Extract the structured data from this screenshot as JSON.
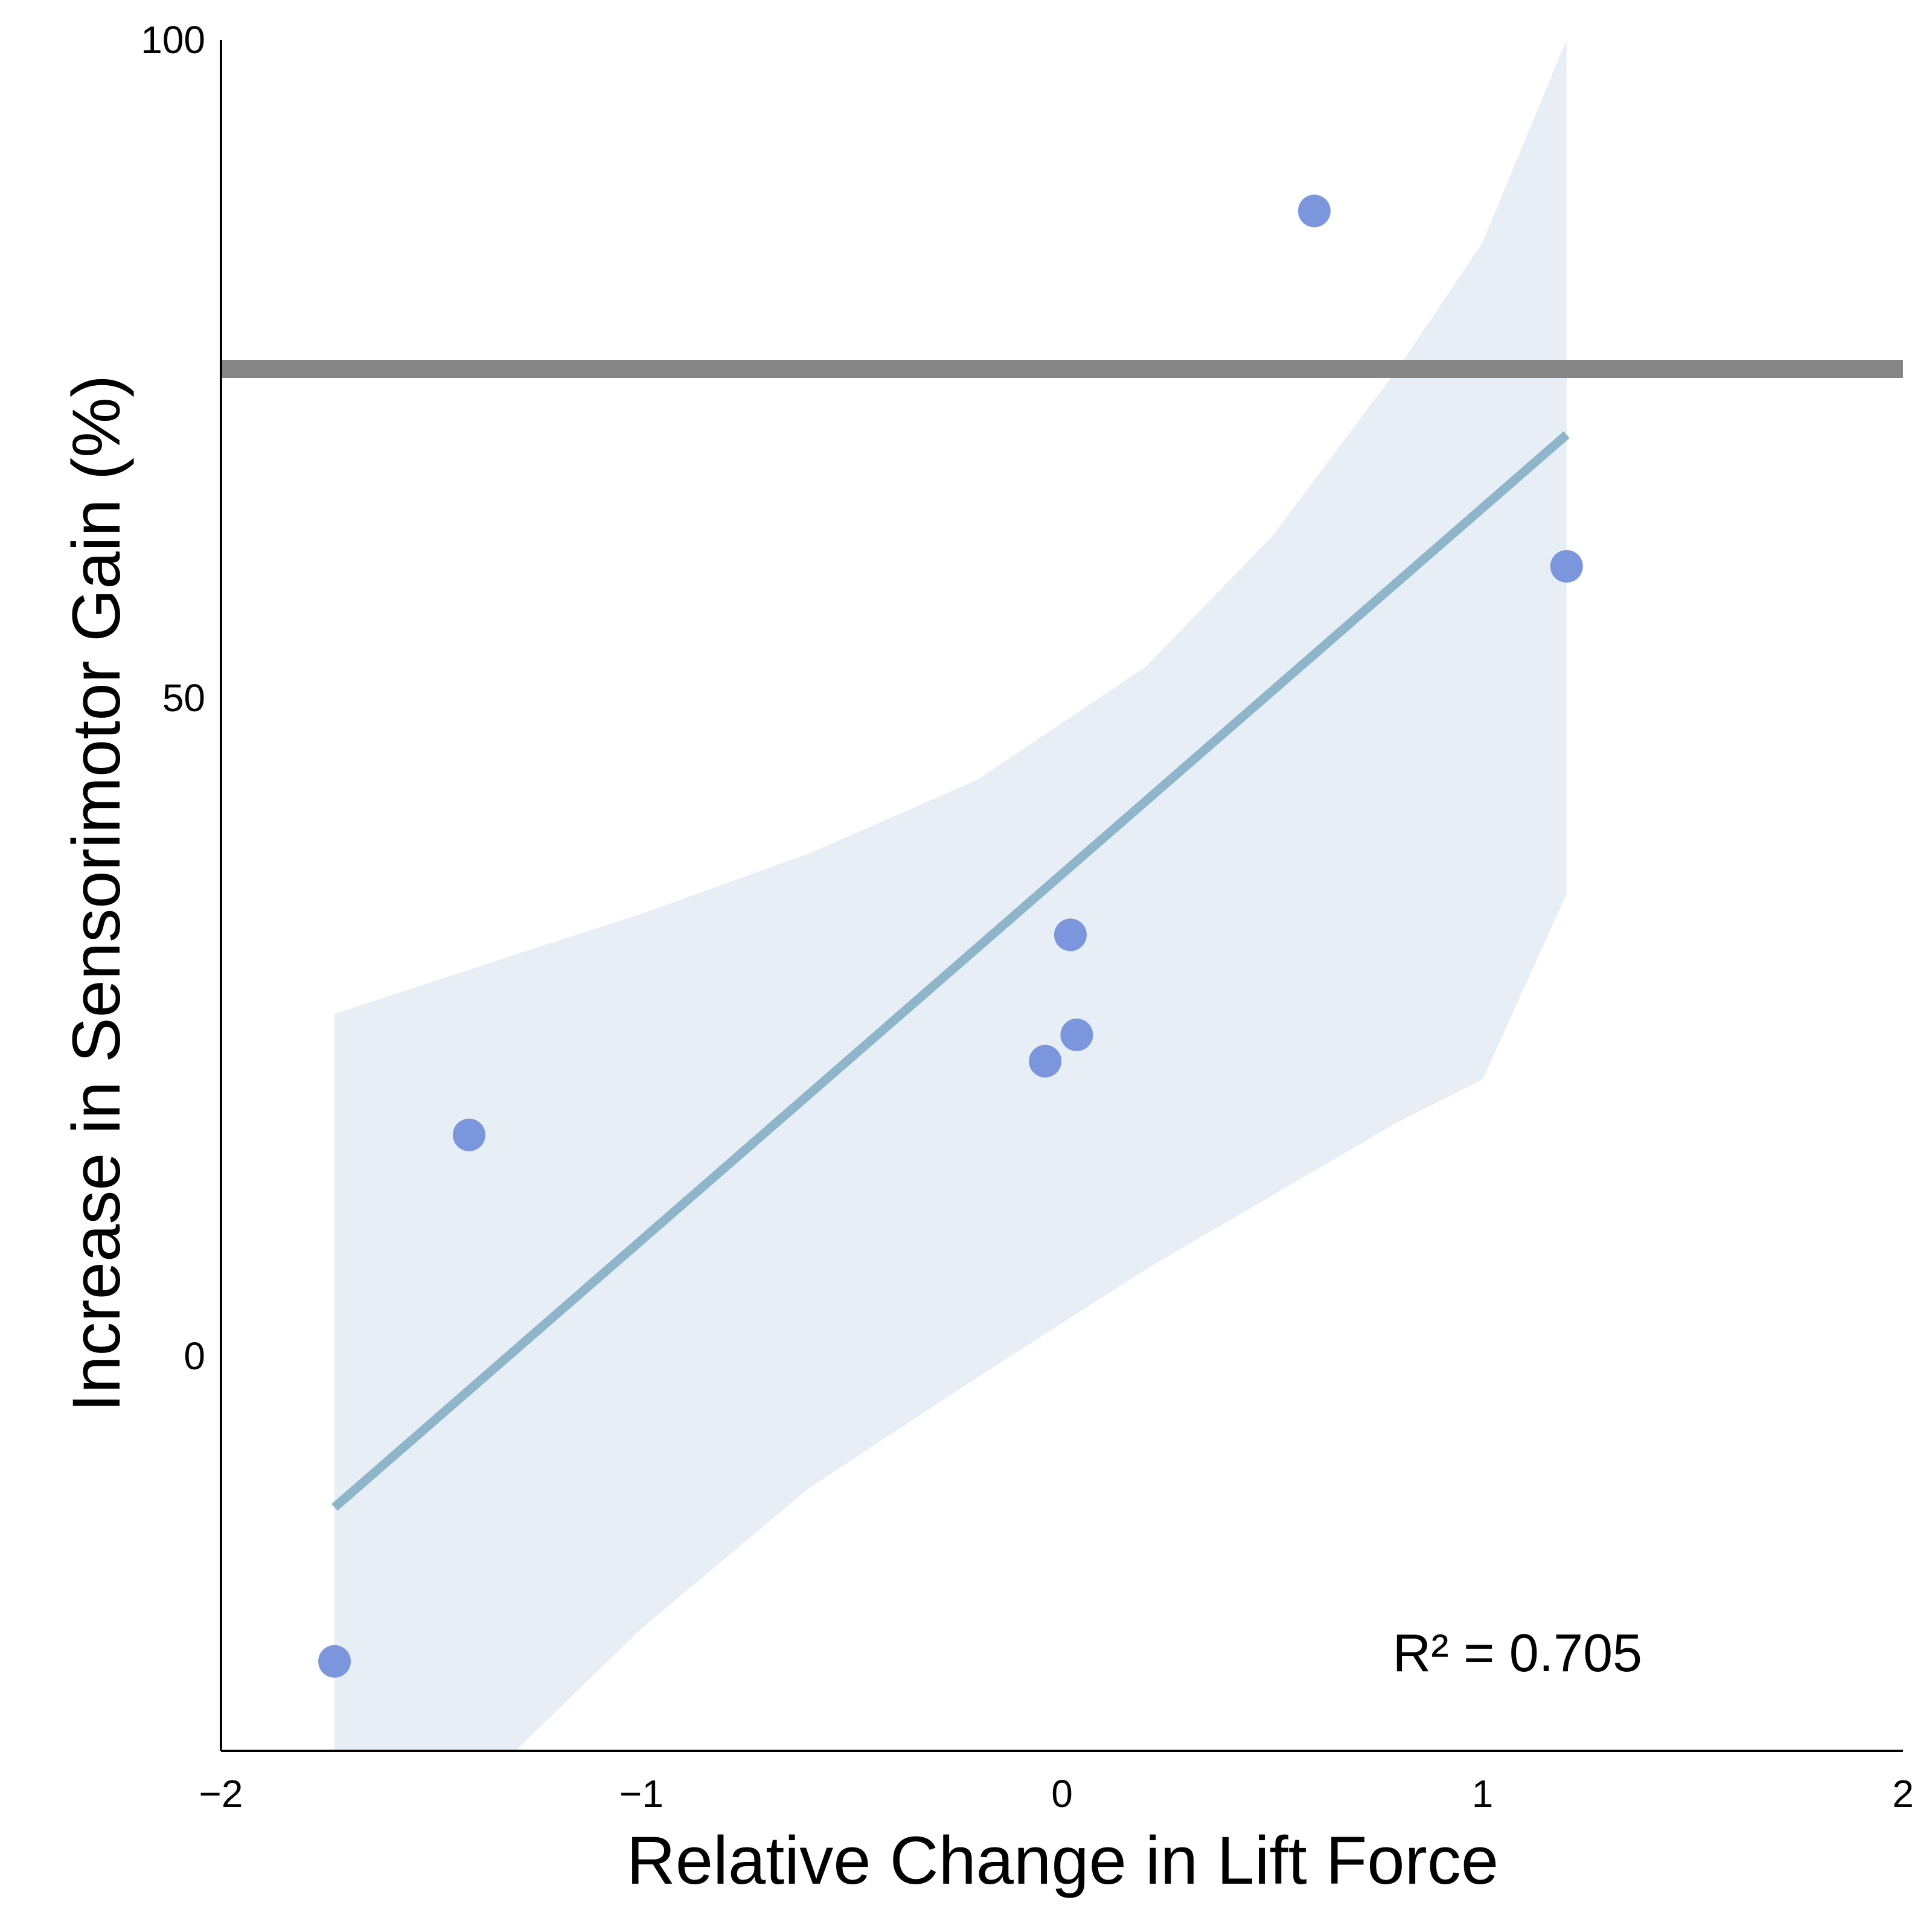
{
  "chart_data": {
    "type": "scatter",
    "title": "",
    "xlabel": "Relative Change in Lift Force",
    "ylabel": "Increase in Sensorimotor Gain (%)",
    "xlim": [
      -2,
      2
    ],
    "ylim": [
      -30,
      100
    ],
    "x_ticks": [
      -2,
      -1,
      0,
      1,
      2
    ],
    "x_tick_labels": [
      "−2",
      "−1",
      "0",
      "1",
      "2"
    ],
    "y_ticks": [
      0,
      50,
      100
    ],
    "y_tick_labels": [
      "0",
      "50",
      "100"
    ],
    "grid": false,
    "points": [
      {
        "x": -1.73,
        "y": -23.2
      },
      {
        "x": -1.41,
        "y": 16.8
      },
      {
        "x": -0.04,
        "y": 22.4
      },
      {
        "x": 0.02,
        "y": 32.0
      },
      {
        "x": 0.035,
        "y": 24.4
      },
      {
        "x": 0.6,
        "y": 87.0
      },
      {
        "x": 1.2,
        "y": 60.0
      }
    ],
    "fit_line": {
      "x": [
        -1.73,
        1.2
      ],
      "y": [
        -11.5,
        70.0
      ]
    },
    "confidence_band": {
      "x": [
        -1.73,
        -1.3,
        -1.0,
        -0.6,
        -0.2,
        0.2,
        0.5,
        0.8,
        1.0,
        1.2
      ],
      "upper": [
        26.0,
        30.5,
        33.6,
        38.2,
        43.8,
        52.4,
        62.3,
        75.1,
        84.6,
        100.0
      ],
      "lower": [
        -48.0,
        -30.0,
        -20.7,
        -10.0,
        -1.6,
        6.6,
        12.2,
        17.8,
        21.0,
        35.1
      ]
    },
    "reference_line": {
      "y": 75
    },
    "annotation": "R² = 0.705",
    "colors": {
      "points": "#7b96dd",
      "fit_line": "#8fb5ca",
      "band": "#e7eef5",
      "reference_line": "#858585",
      "axis": "#000000"
    }
  }
}
